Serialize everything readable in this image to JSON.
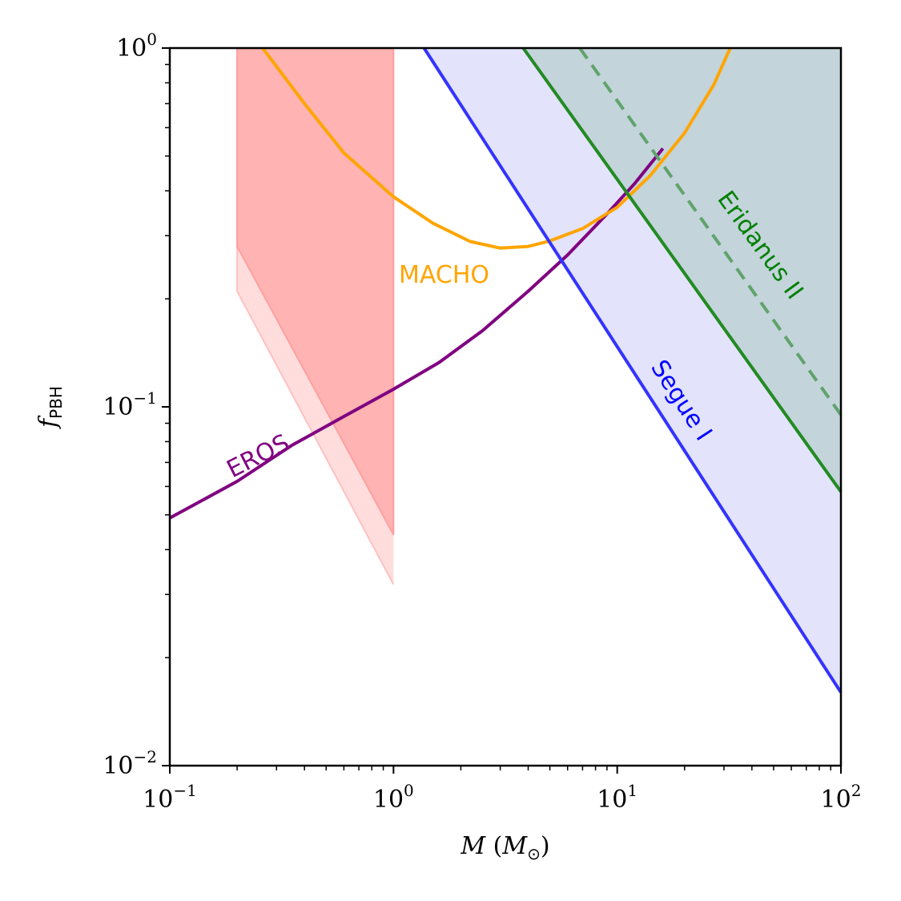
{
  "chart_data": {
    "type": "line",
    "x_scale": "log",
    "y_scale": "log",
    "xlim": [
      0.1,
      100
    ],
    "ylim": [
      0.01,
      1
    ],
    "xlabel": {
      "symbol": "M",
      "unit_open": "(",
      "unit_symbol": "M",
      "unit_sub": "⊙",
      "unit_close": ")"
    },
    "ylabel": {
      "symbol": "f",
      "sub": "PBH"
    },
    "x_ticks": [
      {
        "value": 0.1,
        "base": "10",
        "exp": "−1"
      },
      {
        "value": 1,
        "base": "10",
        "exp": "0"
      },
      {
        "value": 10,
        "base": "10",
        "exp": "1"
      },
      {
        "value": 100,
        "base": "10",
        "exp": "2"
      }
    ],
    "y_ticks": [
      {
        "value": 0.01,
        "base": "10",
        "exp": "−2"
      },
      {
        "value": 0.1,
        "base": "10",
        "exp": "−1"
      },
      {
        "value": 1,
        "base": "10",
        "exp": "0"
      }
    ],
    "grid": false,
    "regions": [
      {
        "color": "#ffdddd",
        "points": [
          [
            0.2,
            1.0
          ],
          [
            0.2,
            0.21
          ],
          [
            1.0,
            0.032
          ],
          [
            1.0,
            1.0
          ]
        ]
      },
      {
        "color": "#ffb3b3",
        "points": [
          [
            0.2,
            1.0
          ],
          [
            0.2,
            0.28
          ],
          [
            1.0,
            0.044
          ],
          [
            1.0,
            1.0
          ]
        ]
      },
      {
        "color": "#e3e3fb",
        "points": [
          [
            1.37,
            1.0
          ],
          [
            100,
            0.016
          ],
          [
            100,
            1.0
          ]
        ]
      },
      {
        "color": "#c3d4db",
        "points": [
          [
            3.8,
            1.0
          ],
          [
            100,
            0.058
          ],
          [
            100,
            1.0
          ]
        ]
      }
    ],
    "series": [
      {
        "label": "EROS",
        "color": "#800080",
        "points": [
          [
            0.1,
            0.049
          ],
          [
            0.2,
            0.062
          ],
          [
            0.35,
            0.078
          ],
          [
            0.6,
            0.094
          ],
          [
            1.0,
            0.112
          ],
          [
            1.6,
            0.133
          ],
          [
            2.5,
            0.163
          ],
          [
            4.0,
            0.21
          ],
          [
            6.0,
            0.265
          ],
          [
            9.0,
            0.345
          ],
          [
            12.0,
            0.42
          ],
          [
            16.0,
            0.525
          ]
        ]
      },
      {
        "label": "MACHO",
        "color": "#ffa500",
        "points": [
          [
            0.26,
            1.0
          ],
          [
            0.4,
            0.7
          ],
          [
            0.6,
            0.51
          ],
          [
            1.0,
            0.385
          ],
          [
            1.5,
            0.325
          ],
          [
            2.2,
            0.289
          ],
          [
            3.0,
            0.277
          ],
          [
            4.0,
            0.28
          ],
          [
            5.0,
            0.29
          ],
          [
            7.0,
            0.314
          ],
          [
            10.0,
            0.36
          ],
          [
            14.0,
            0.44
          ],
          [
            20.0,
            0.58
          ],
          [
            27.0,
            0.79
          ],
          [
            32.0,
            1.0
          ]
        ]
      },
      {
        "label": "Segue I",
        "color": "#3333ff",
        "points": [
          [
            1.37,
            1.0
          ],
          [
            100,
            0.016
          ]
        ]
      },
      {
        "label": "Eridanus II",
        "color": "#228b22",
        "points": [
          [
            3.8,
            1.0
          ],
          [
            100,
            0.058
          ]
        ]
      },
      {
        "label": "",
        "color": "#5fa36a",
        "dashed": true,
        "points": [
          [
            6.8,
            1.0
          ],
          [
            100,
            0.095
          ]
        ]
      }
    ],
    "annotations": [
      {
        "text": "EROS",
        "color": "#800080"
      },
      {
        "text": "MACHO",
        "color": "#ffa500"
      },
      {
        "text": "Segue I",
        "color": "#0000ff"
      },
      {
        "text": "Eridanus II",
        "color": "#008000"
      }
    ]
  }
}
